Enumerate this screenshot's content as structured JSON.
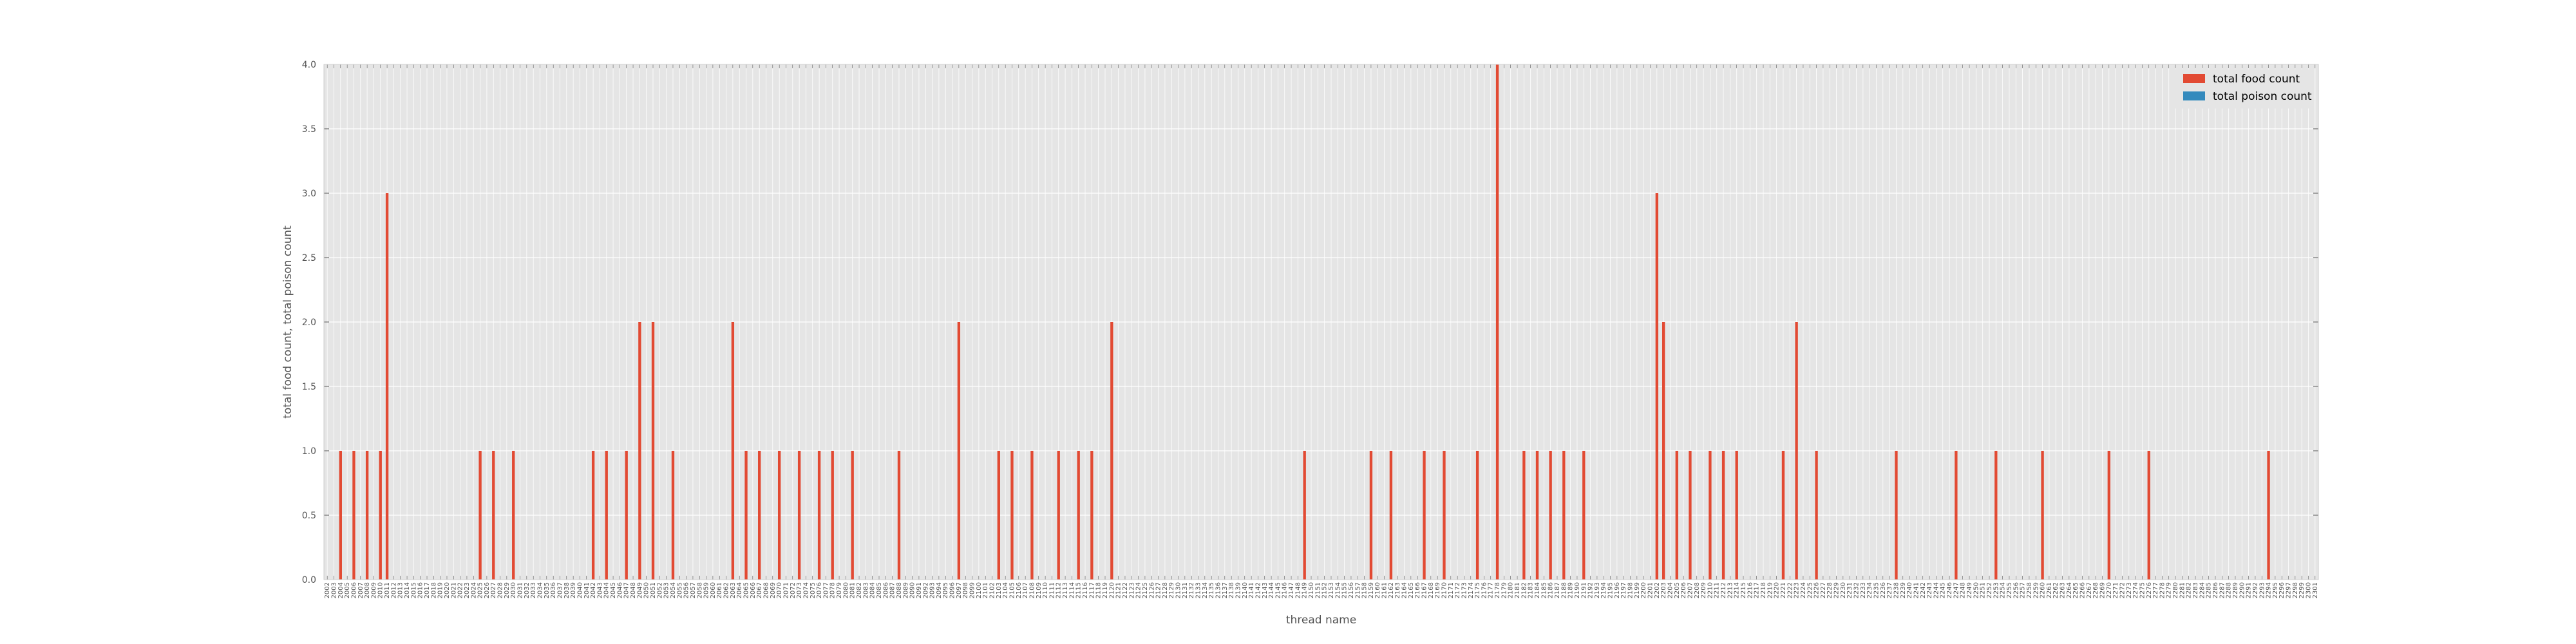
{
  "chart_data": {
    "type": "bar",
    "title": "",
    "xlabel": "thread name",
    "ylabel": "total food count, total poison count",
    "ylim": [
      0,
      4
    ],
    "yticks": [
      "0.0",
      "0.5",
      "1.0",
      "1.5",
      "2.0",
      "2.5",
      "3.0",
      "3.5",
      "4.0"
    ],
    "grid": true,
    "legend_position": "top-right",
    "colors": {
      "food": "#e24a33",
      "poison": "#348abd",
      "plot_bg": "#e5e5e5",
      "grid": "#ffffff"
    },
    "category_start": 2002,
    "category_count": 300,
    "series": [
      {
        "name": "total food count",
        "color": "#e24a33",
        "values": [
          0,
          0,
          1,
          0,
          1,
          0,
          1,
          0,
          1,
          3,
          0,
          0,
          0,
          0,
          0,
          0,
          0,
          0,
          0,
          0,
          0,
          0,
          0,
          1,
          0,
          1,
          0,
          0,
          1,
          0,
          0,
          0,
          0,
          0,
          0,
          0,
          0,
          0,
          0,
          0,
          1,
          0,
          1,
          0,
          0,
          1,
          0,
          2,
          0,
          2,
          0,
          0,
          1,
          0,
          0,
          0,
          0,
          0,
          0,
          0,
          0,
          2,
          0,
          1,
          0,
          1,
          0,
          0,
          1,
          0,
          0,
          1,
          0,
          0,
          1,
          0,
          1,
          0,
          0,
          1,
          0,
          0,
          0,
          0,
          0,
          0,
          1,
          0,
          0,
          0,
          0,
          0,
          0,
          0,
          0,
          2,
          0,
          0,
          0,
          0,
          0,
          1,
          0,
          1,
          0,
          0,
          1,
          0,
          0,
          0,
          1,
          0,
          0,
          1,
          0,
          1,
          0,
          0,
          2,
          0,
          0,
          0,
          0,
          0,
          0,
          0,
          0,
          0,
          0,
          0,
          0,
          0,
          0,
          0,
          0,
          0,
          0,
          0,
          0,
          0,
          0,
          0,
          0,
          0,
          0,
          0,
          0,
          1,
          0,
          0,
          0,
          0,
          0,
          0,
          0,
          0,
          0,
          1,
          0,
          0,
          1,
          0,
          0,
          0,
          0,
          1,
          0,
          0,
          1,
          0,
          0,
          0,
          0,
          1,
          0,
          0,
          4,
          0,
          0,
          0,
          1,
          0,
          1,
          0,
          1,
          0,
          1,
          0,
          0,
          1,
          0,
          0,
          0,
          0,
          0,
          0,
          0,
          0,
          0,
          0,
          3,
          2,
          0,
          1,
          0,
          1,
          0,
          0,
          1,
          0,
          1,
          0,
          1,
          0,
          0,
          0,
          0,
          0,
          0,
          1,
          0,
          2,
          0,
          0,
          1,
          0,
          0,
          0,
          0,
          0,
          0,
          0,
          0,
          0,
          0,
          0,
          1,
          0,
          0,
          0,
          0,
          0,
          0,
          0,
          0,
          1,
          0,
          0,
          0,
          0,
          0,
          1,
          0,
          0,
          0,
          0,
          0,
          0,
          1,
          0,
          0,
          0,
          0,
          0,
          0,
          0,
          0,
          0,
          1,
          0,
          0,
          0,
          0,
          0,
          1,
          0,
          0,
          0,
          0,
          0,
          0,
          0,
          0,
          0,
          0,
          0,
          0,
          0,
          0,
          0,
          0,
          0,
          1
        ]
      },
      {
        "name": "total poison count",
        "color": "#348abd",
        "values": [
          0,
          0,
          0,
          0,
          0,
          0,
          0,
          0,
          0,
          0,
          0,
          0,
          0,
          0,
          0,
          0,
          0,
          0,
          0,
          0,
          0,
          0,
          0,
          0,
          0,
          0,
          0,
          0,
          0,
          0,
          0,
          0,
          0,
          0,
          0,
          0,
          0,
          0,
          0,
          0,
          0,
          0,
          0,
          0,
          0,
          0,
          0,
          0,
          0,
          0,
          0,
          0,
          0,
          0,
          0,
          0,
          0,
          0,
          0,
          0,
          0,
          0,
          0,
          0,
          0,
          0,
          0,
          0,
          0,
          0,
          0,
          0,
          0,
          0,
          0,
          0,
          0,
          0,
          0,
          0,
          0,
          0,
          0,
          0,
          0,
          0,
          0,
          0,
          0,
          0,
          0,
          0,
          0,
          0,
          0,
          0,
          0,
          0,
          0,
          0,
          0,
          0,
          0,
          0,
          0,
          0,
          0,
          0,
          0,
          0,
          0,
          0,
          0,
          0,
          0,
          0,
          0,
          0,
          0,
          0,
          0,
          0,
          0,
          0,
          0,
          0,
          0,
          0,
          0,
          0,
          0,
          0,
          0,
          0,
          0,
          0,
          0,
          0,
          0,
          0,
          0,
          0,
          0,
          0,
          0,
          0,
          0,
          0,
          0,
          0,
          0,
          0,
          0,
          0,
          0,
          0,
          0,
          0,
          0,
          0,
          0,
          0,
          0,
          0,
          0,
          0,
          0,
          0,
          0,
          0,
          0,
          0,
          0,
          0,
          0,
          0,
          0,
          0,
          0,
          0,
          0,
          0,
          0,
          0,
          0,
          0,
          0,
          0,
          0,
          0,
          0,
          0,
          0,
          0,
          0,
          0,
          0,
          0,
          0,
          0,
          0,
          0,
          0,
          0,
          0,
          0,
          0,
          0,
          0,
          0,
          0,
          0,
          0,
          0,
          0,
          0,
          0,
          0,
          0,
          0,
          0,
          0,
          0,
          0,
          0,
          0,
          0,
          0,
          0,
          0,
          0,
          0,
          0,
          0,
          0,
          0,
          0,
          0,
          0,
          0,
          0,
          0,
          0,
          0,
          0,
          0,
          0,
          0,
          0,
          0,
          0,
          0,
          0,
          0,
          0,
          0,
          0,
          0,
          0,
          0,
          0,
          0,
          0,
          0,
          0,
          0,
          0,
          0,
          0,
          0,
          0,
          0,
          0,
          0,
          0,
          0,
          0,
          0,
          0,
          0,
          0,
          0,
          0,
          0,
          0,
          0,
          0,
          0,
          0,
          0,
          0,
          0,
          0,
          0,
          0,
          0,
          0,
          0,
          0,
          0,
          0,
          0,
          0,
          0,
          0
        ]
      }
    ]
  }
}
